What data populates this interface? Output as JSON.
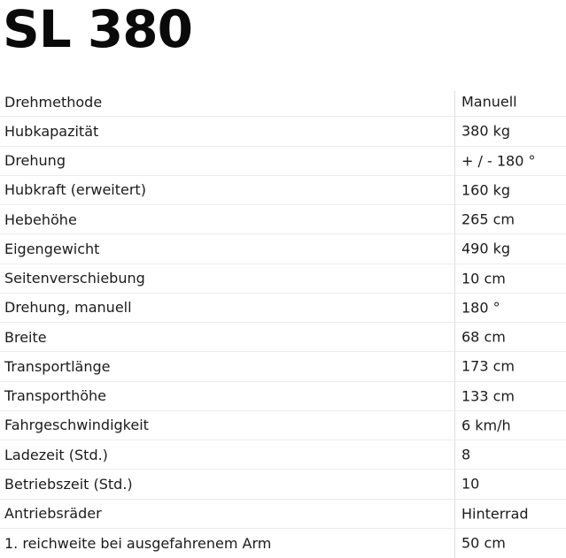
{
  "page": {
    "title": "SL 380"
  },
  "colors": {
    "page-bg": "#ffffff",
    "title-color": "#0a0a0a",
    "text-color": "#1b1b1b",
    "separator-color": "#ececec",
    "divider-color": "#dfdfdf"
  },
  "table": {
    "rows": [
      {
        "label": "Drehmethode",
        "value": "Manuell"
      },
      {
        "label": "Hubkapazität",
        "value": "380 kg"
      },
      {
        "label": "Drehung",
        "value": "+ / - 180 °"
      },
      {
        "label": "Hubkraft (erweitert)",
        "value": "160 kg"
      },
      {
        "label": "Hebehöhe",
        "value": "265 cm"
      },
      {
        "label": "Eigengewicht",
        "value": "490 kg"
      },
      {
        "label": "Seitenverschiebung",
        "value": "10 cm"
      },
      {
        "label": "Drehung, manuell",
        "value": "180 °"
      },
      {
        "label": "Breite",
        "value": "68 cm"
      },
      {
        "label": "Transportlänge",
        "value": "173 cm"
      },
      {
        "label": "Transporthöhe",
        "value": "133 cm"
      },
      {
        "label": "Fahrgeschwindigkeit",
        "value": "6 km/h"
      },
      {
        "label": "Ladezeit (Std.)",
        "value": "8"
      },
      {
        "label": "Betriebszeit (Std.)",
        "value": "10"
      },
      {
        "label": "Antriebsräder",
        "value": "Hinterrad"
      },
      {
        "label": "1. reichweite bei ausgefahrenem Arm",
        "value": "50 cm"
      }
    ]
  }
}
